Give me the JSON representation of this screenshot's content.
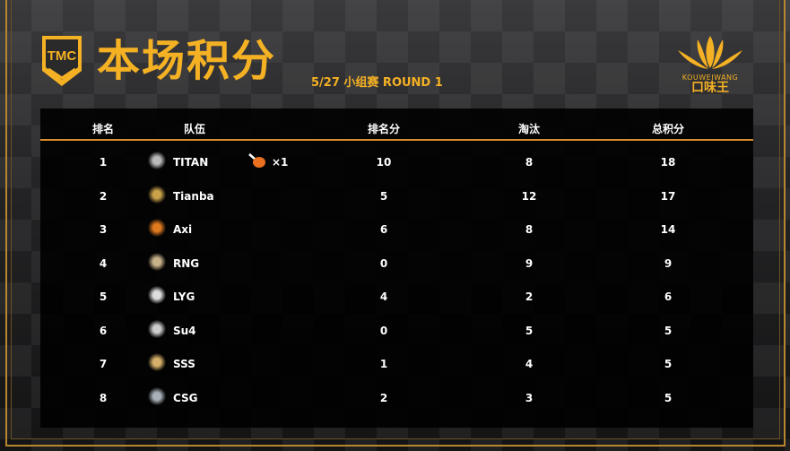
{
  "header": {
    "logo_text": "TMC",
    "title": "本场积分",
    "subtitle": "5/27  小组赛  ROUND 1"
  },
  "sponsor": {
    "name_en": "KOUWEIWANG",
    "name_cn": "口味王"
  },
  "colors": {
    "accent": "#f5b124",
    "divider": "#d98f2b"
  },
  "table": {
    "columns": [
      "排名",
      "队伍",
      "排名分",
      "淘汰",
      "总积分"
    ],
    "rows": [
      {
        "rank": "1",
        "team": "TITAN",
        "chicken": "×1",
        "placement": "10",
        "kills": "8",
        "total": "18",
        "logo_color": "#bbbbbb"
      },
      {
        "rank": "2",
        "team": "Tianba",
        "placement": "5",
        "kills": "12",
        "total": "17",
        "logo_color": "#c9a24a"
      },
      {
        "rank": "3",
        "team": "Axi",
        "placement": "6",
        "kills": "8",
        "total": "14",
        "logo_color": "#e07a1f"
      },
      {
        "rank": "4",
        "team": "RNG",
        "placement": "0",
        "kills": "9",
        "total": "9",
        "logo_color": "#c8b28a"
      },
      {
        "rank": "5",
        "team": "LYG",
        "placement": "4",
        "kills": "2",
        "total": "6",
        "logo_color": "#dddddd"
      },
      {
        "rank": "6",
        "team": "Su4",
        "placement": "0",
        "kills": "5",
        "total": "5",
        "logo_color": "#cccccc"
      },
      {
        "rank": "7",
        "team": "SSS",
        "placement": "1",
        "kills": "4",
        "total": "5",
        "logo_color": "#d6b06a"
      },
      {
        "rank": "8",
        "team": "CSG",
        "placement": "2",
        "kills": "3",
        "total": "5",
        "logo_color": "#a8b0b8"
      }
    ]
  }
}
